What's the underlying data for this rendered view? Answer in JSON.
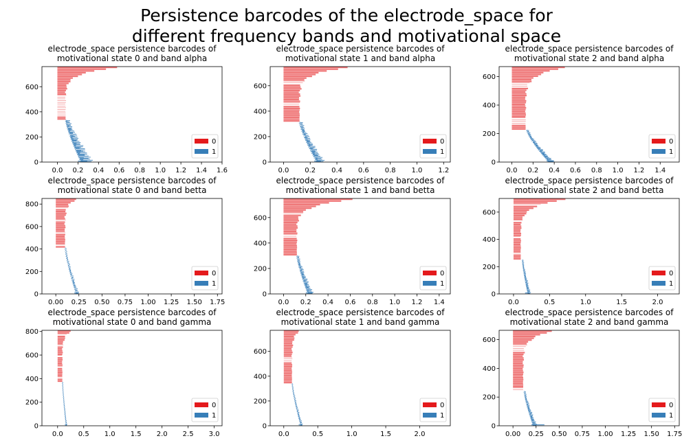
{
  "suptitle_lines": [
    "Persistence barcodes of the electrode_space for",
    "different frequency bands and motivational space"
  ],
  "colors": {
    "dim0": "#e41a1c",
    "dim1": "#377eb8",
    "axis": "#000000"
  },
  "chart_data": [
    {
      "type": "bar",
      "title_lines": [
        "electrode_space persistence barcodes of",
        "motivational state 0 and band alpha"
      ],
      "xlim": [
        -0.15,
        1.6
      ],
      "ylim": [
        0,
        760
      ],
      "xticks": [
        0.0,
        0.2,
        0.4,
        0.6,
        0.8,
        1.0,
        1.2,
        1.4,
        1.6
      ],
      "xtick_labels": [
        "0.0",
        "0.2",
        "0.4",
        "0.6",
        "0.8",
        "1.0",
        "1.2",
        "1.4",
        "1.6"
      ],
      "yticks": [
        0,
        200,
        400,
        600
      ],
      "ytick_labels": [
        "0",
        "200",
        "400",
        "600"
      ],
      "legend": {
        "placement": "lower-right",
        "entries": [
          {
            "label": "0",
            "dim": 0
          },
          {
            "label": "1",
            "dim": 1
          }
        ]
      },
      "dim0": {
        "ymin": 335,
        "ymax": 760,
        "end_min": 0.08,
        "end_max": 0.58,
        "gap": 14
      },
      "dim1": {
        "ymin": 0,
        "ymax": 335,
        "x_start": 0.08,
        "x_end": 0.23,
        "death_min": 0.002,
        "death_max": 0.12,
        "max_bar": [
          0.2,
          0.29
        ]
      }
    },
    {
      "type": "bar",
      "title_lines": [
        "electrode_space persistence barcodes of",
        "motivational state 1 and band alpha"
      ],
      "xlim": [
        -0.1,
        1.25
      ],
      "ylim": [
        0,
        750
      ],
      "xticks": [
        0.0,
        0.2,
        0.4,
        0.6,
        0.8,
        1.0,
        1.2
      ],
      "xtick_labels": [
        "0.0",
        "0.2",
        "0.4",
        "0.6",
        "0.8",
        "1.0",
        "1.2"
      ],
      "yticks": [
        0,
        200,
        400,
        600
      ],
      "ytick_labels": [
        "0",
        "200",
        "400",
        "600"
      ],
      "legend": {
        "placement": "lower-right",
        "entries": [
          {
            "label": "0",
            "dim": 0
          },
          {
            "label": "1",
            "dim": 1
          }
        ]
      },
      "dim0": {
        "ymin": 315,
        "ymax": 750,
        "end_min": 0.12,
        "end_max": 0.48,
        "gap": 13
      },
      "dim1": {
        "ymin": 0,
        "ymax": 315,
        "x_start": 0.12,
        "x_end": 0.25,
        "death_min": 0.002,
        "death_max": 0.06,
        "max_bar": [
          0.23,
          0.28
        ]
      }
    },
    {
      "type": "bar",
      "title_lines": [
        "electrode_space persistence barcodes of",
        "motivational state 2 and band alpha"
      ],
      "xlim": [
        -0.12,
        1.58
      ],
      "ylim": [
        0,
        670
      ],
      "xticks": [
        0.0,
        0.2,
        0.4,
        0.6,
        0.8,
        1.0,
        1.2,
        1.4
      ],
      "xtick_labels": [
        "0.0",
        "0.2",
        "0.4",
        "0.6",
        "0.8",
        "1.0",
        "1.2",
        "1.4"
      ],
      "yticks": [
        0,
        200,
        400,
        600
      ],
      "ytick_labels": [
        "0",
        "200",
        "400",
        "600"
      ],
      "legend": {
        "placement": "lower-right",
        "entries": [
          {
            "label": "0",
            "dim": 0
          },
          {
            "label": "1",
            "dim": 1
          }
        ]
      },
      "dim0": {
        "ymin": 225,
        "ymax": 670,
        "end_min": 0.13,
        "end_max": 0.5,
        "gap": 13
      },
      "dim1": {
        "ymin": 0,
        "ymax": 225,
        "x_start": 0.14,
        "x_end": 0.35,
        "death_min": 0.002,
        "death_max": 0.05,
        "max_bar": [
          0.33,
          0.4
        ]
      }
    },
    {
      "type": "bar",
      "title_lines": [
        "electrode_space persistence barcodes of",
        "motivational state 0 and band betta"
      ],
      "xlim": [
        -0.15,
        1.8
      ],
      "ylim": [
        0,
        850
      ],
      "xticks": [
        0.0,
        0.25,
        0.5,
        0.75,
        1.0,
        1.25,
        1.5,
        1.75
      ],
      "xtick_labels": [
        "0.00",
        "0.25",
        "0.50",
        "0.75",
        "1.00",
        "1.25",
        "1.50",
        "1.75"
      ],
      "yticks": [
        0,
        200,
        400,
        600,
        800
      ],
      "ytick_labels": [
        "0",
        "200",
        "400",
        "600",
        "800"
      ],
      "legend": {
        "placement": "lower-right",
        "entries": [
          {
            "label": "0",
            "dim": 0
          },
          {
            "label": "1",
            "dim": 1
          }
        ]
      },
      "dim0": {
        "ymin": 410,
        "ymax": 850,
        "end_min": 0.1,
        "end_max": 0.22,
        "gap": 55
      },
      "dim1": {
        "ymin": 0,
        "ymax": 410,
        "x_start": 0.1,
        "x_end": 0.22,
        "death_min": 0.002,
        "death_max": 0.03,
        "max_bar": [
          0.2,
          0.25
        ]
      }
    },
    {
      "type": "bar",
      "title_lines": [
        "electrode_space persistence barcodes of",
        "motivational state 1 and band betta"
      ],
      "xlim": [
        -0.12,
        1.5
      ],
      "ylim": [
        0,
        750
      ],
      "xticks": [
        0.0,
        0.2,
        0.4,
        0.6,
        0.8,
        1.0,
        1.2,
        1.4
      ],
      "xtick_labels": [
        "0.0",
        "0.2",
        "0.4",
        "0.6",
        "0.8",
        "1.0",
        "1.2",
        "1.4"
      ],
      "yticks": [
        0,
        200,
        400,
        600
      ],
      "ytick_labels": [
        "0",
        "200",
        "400",
        "600"
      ],
      "legend": {
        "placement": "lower-right",
        "entries": [
          {
            "label": "0",
            "dim": 0
          },
          {
            "label": "1",
            "dim": 1
          }
        ]
      },
      "dim0": {
        "ymin": 300,
        "ymax": 750,
        "end_min": 0.12,
        "end_max": 0.62,
        "gap": 13
      },
      "dim1": {
        "ymin": 0,
        "ymax": 300,
        "x_start": 0.12,
        "x_end": 0.22,
        "death_min": 0.002,
        "death_max": 0.05,
        "max_bar": [
          0.2,
          0.26
        ]
      }
    },
    {
      "type": "bar",
      "title_lines": [
        "electrode_space persistence barcodes of",
        "motivational state 2 and band betta"
      ],
      "xlim": [
        -0.2,
        2.3
      ],
      "ylim": [
        0,
        700
      ],
      "xticks": [
        0.0,
        0.5,
        1.0,
        1.5,
        2.0
      ],
      "xtick_labels": [
        "0.0",
        "0.5",
        "1.0",
        "1.5",
        "2.0"
      ],
      "yticks": [
        0,
        200,
        400,
        600
      ],
      "ytick_labels": [
        "0",
        "200",
        "400",
        "600"
      ],
      "legend": {
        "placement": "lower-right",
        "entries": [
          {
            "label": "0",
            "dim": 0
          },
          {
            "label": "1",
            "dim": 1
          }
        ]
      },
      "dim0": {
        "ymin": 250,
        "ymax": 700,
        "end_min": 0.1,
        "end_max": 0.72,
        "gap": 60
      },
      "dim1": {
        "ymin": 0,
        "ymax": 250,
        "x_start": 0.12,
        "x_end": 0.2,
        "death_min": 0.002,
        "death_max": 0.04,
        "max_bar": [
          0.16,
          0.22
        ]
      }
    },
    {
      "type": "bar",
      "title_lines": [
        "electrode_space persistence barcodes of",
        "motivational state 0 and band gamma"
      ],
      "xlim": [
        -0.3,
        3.15
      ],
      "ylim": [
        0,
        810
      ],
      "xticks": [
        0.0,
        0.5,
        1.0,
        1.5,
        2.0,
        2.5,
        3.0
      ],
      "xtick_labels": [
        "0.0",
        "0.5",
        "1.0",
        "1.5",
        "2.0",
        "2.5",
        "3.0"
      ],
      "yticks": [
        0,
        200,
        400,
        600,
        800
      ],
      "ytick_labels": [
        "0",
        "200",
        "400",
        "600",
        "800"
      ],
      "legend": {
        "placement": "lower-right",
        "entries": [
          {
            "label": "0",
            "dim": 0
          },
          {
            "label": "1",
            "dim": 1
          }
        ]
      },
      "dim0": {
        "ymin": 370,
        "ymax": 810,
        "end_min": 0.09,
        "end_max": 0.25,
        "gap": 13
      },
      "dim1": {
        "ymin": 0,
        "ymax": 370,
        "x_start": 0.09,
        "x_end": 0.16,
        "death_min": 0.002,
        "death_max": 0.02,
        "max_bar": [
          0.14,
          0.18
        ]
      }
    },
    {
      "type": "bar",
      "title_lines": [
        "electrode_space persistence barcodes of",
        "motivational state 1 and band gamma"
      ],
      "xlim": [
        -0.2,
        2.45
      ],
      "ylim": [
        0,
        770
      ],
      "xticks": [
        0.0,
        0.5,
        1.0,
        1.5,
        2.0
      ],
      "xtick_labels": [
        "0.0",
        "0.5",
        "1.0",
        "1.5",
        "2.0"
      ],
      "yticks": [
        0,
        200,
        400,
        600
      ],
      "ytick_labels": [
        "0",
        "200",
        "400",
        "600"
      ],
      "legend": {
        "placement": "lower-right",
        "entries": [
          {
            "label": "0",
            "dim": 0
          },
          {
            "label": "1",
            "dim": 1
          }
        ]
      },
      "dim0": {
        "ymin": 340,
        "ymax": 770,
        "end_min": 0.12,
        "end_max": 0.22,
        "gap": 15
      },
      "dim1": {
        "ymin": 0,
        "ymax": 340,
        "x_start": 0.12,
        "x_end": 0.25,
        "death_min": 0.002,
        "death_max": 0.03,
        "max_bar": [
          0.22,
          0.27
        ]
      }
    },
    {
      "type": "bar",
      "title_lines": [
        "electrode_space persistence barcodes of",
        "motivational state 2 and band gamma"
      ],
      "xlim": [
        -0.15,
        1.8
      ],
      "ylim": [
        0,
        665
      ],
      "xticks": [
        0.0,
        0.25,
        0.5,
        0.75,
        1.0,
        1.25,
        1.5,
        1.75
      ],
      "xtick_labels": [
        "0.00",
        "0.25",
        "0.50",
        "0.75",
        "1.00",
        "1.25",
        "1.50",
        "1.75"
      ],
      "yticks": [
        0,
        200,
        400,
        600
      ],
      "ytick_labels": [
        "0",
        "200",
        "400",
        "600"
      ],
      "legend": {
        "placement": "lower-right",
        "entries": [
          {
            "label": "0",
            "dim": 0
          },
          {
            "label": "1",
            "dim": 1
          }
        ]
      },
      "dim0": {
        "ymin": 240,
        "ymax": 665,
        "end_min": 0.11,
        "end_max": 0.42,
        "gap": 12
      },
      "dim1": {
        "ymin": 0,
        "ymax": 240,
        "x_start": 0.12,
        "x_end": 0.22,
        "death_min": 0.002,
        "death_max": 0.04,
        "max_bar": [
          0.2,
          0.34
        ]
      }
    }
  ]
}
